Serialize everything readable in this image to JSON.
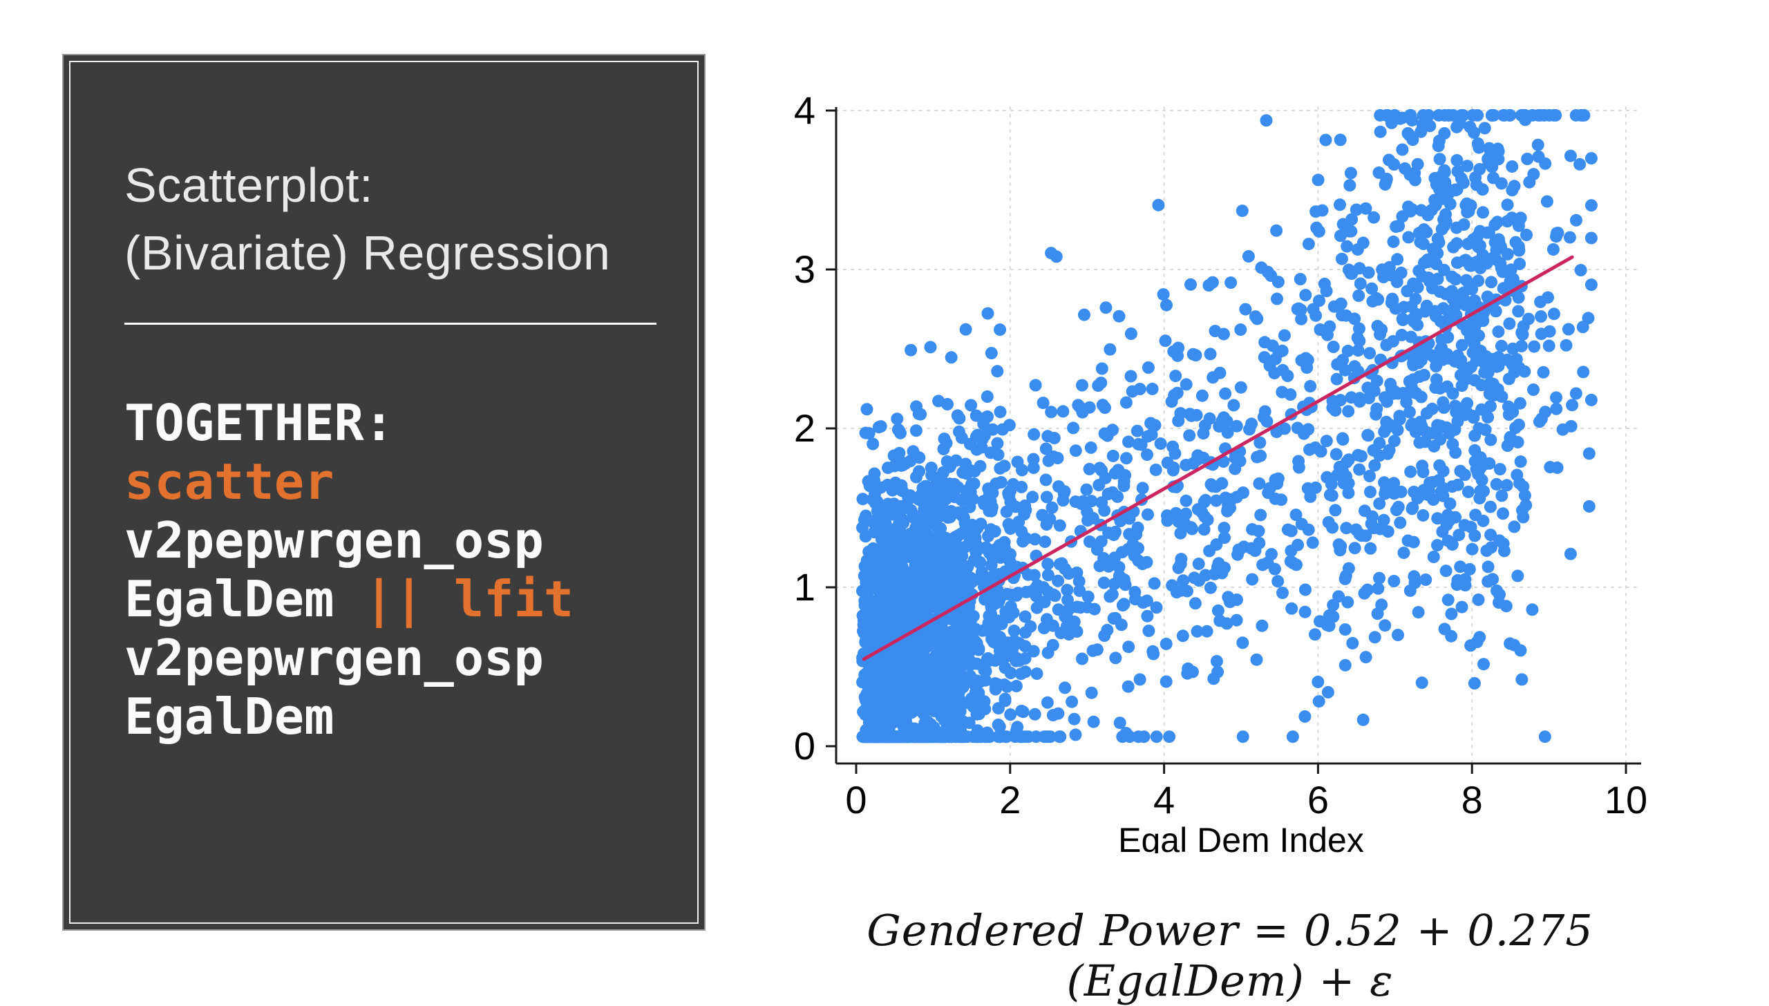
{
  "slide": {
    "background": "#FFFFFF"
  },
  "panel": {
    "background": "#3D3C3C",
    "outer_border_color": "#979797",
    "inner_frame_color": "#EFEFEF",
    "title_lines": [
      "Scatterplot:",
      "(Bivariate) Regression"
    ],
    "title_color": "#E9E9E7",
    "code_heading": "TOGETHER:",
    "code_color_default": "#FAFAFA",
    "code_color_accent": "#E2722E",
    "code_lines": [
      {
        "segments": [
          {
            "text": "scatter",
            "accent": true
          }
        ]
      },
      {
        "segments": [
          {
            "text": "v2pepwrgen_osp",
            "accent": false
          }
        ]
      },
      {
        "segments": [
          {
            "text": "EgalDem ",
            "accent": false
          },
          {
            "text": "|| lfit",
            "accent": true
          }
        ]
      },
      {
        "segments": [
          {
            "text": "v2pepwrgen_osp",
            "accent": false
          }
        ]
      },
      {
        "segments": [
          {
            "text": "EgalDem",
            "accent": false
          }
        ]
      }
    ]
  },
  "chart_data": {
    "type": "scatter",
    "title": "",
    "xlabel": "Egal Dem Index",
    "ylabel": "",
    "xlim": [
      0,
      10
    ],
    "ylim": [
      0,
      4
    ],
    "x_ticks": [
      0,
      2,
      4,
      6,
      8,
      10
    ],
    "y_ticks": [
      0,
      1,
      2,
      3,
      4
    ],
    "grid": "dashed",
    "grid_color": "#D8D8D8",
    "axis_color": "#1A1A1A",
    "marker_color": "#3A8DEE",
    "marker_radius": 9,
    "n_points": 3000,
    "seed": 20,
    "generator": {
      "note": "dense cloud of country-year points; heavy mass at low x, secondary cluster at high x, positive trend",
      "x_mixture": [
        {
          "type": "halfnormal",
          "weight": 0.48,
          "offset": 0.08,
          "sd": 0.95
        },
        {
          "type": "uniform",
          "weight": 0.34,
          "min": 0.2,
          "max": 8.4
        },
        {
          "type": "normal",
          "weight": 0.18,
          "mean": 7.9,
          "sd": 0.9
        }
      ],
      "y_model": {
        "intercept": 0.44,
        "slope": 0.27,
        "noise_sd_base": 0.55,
        "noise_sd_slope": 0.04
      },
      "x_clip": [
        0.05,
        9.55
      ],
      "y_clip": [
        0.06,
        3.97
      ]
    },
    "fit_line": {
      "label": "lfit",
      "color": "#CB265F",
      "width": 5,
      "intercept": 0.52,
      "slope": 0.275,
      "x_start": 0.1,
      "x_end": 9.3
    }
  },
  "caption": {
    "equation": "Gendered Power = 0.52 + 0.275 (EgalDem) + ε"
  }
}
